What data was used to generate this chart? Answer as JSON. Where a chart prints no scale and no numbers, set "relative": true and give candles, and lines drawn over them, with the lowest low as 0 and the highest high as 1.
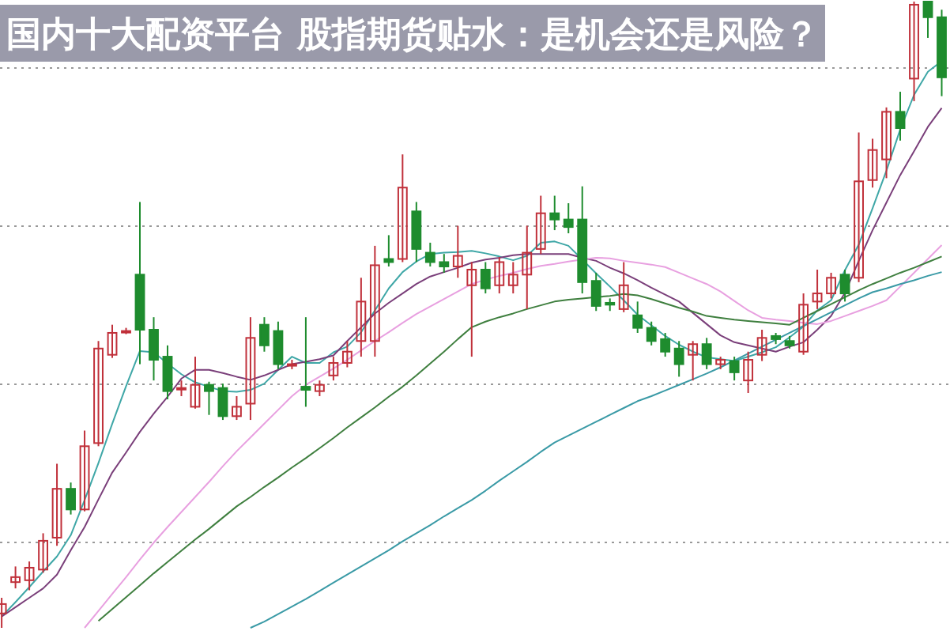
{
  "chart_data": {
    "type": "candlestick",
    "title": "国内十大配资平台 股指期货贴水：是机会还是风险？",
    "relative": true,
    "grid": "y",
    "categories": [
      null,
      null,
      null,
      null,
      null,
      null,
      null,
      null,
      null,
      null,
      null,
      null,
      null,
      null,
      null,
      null,
      null,
      null,
      null,
      null,
      null,
      null,
      null,
      null,
      null,
      null,
      null,
      null,
      null,
      null,
      null,
      null,
      null,
      null,
      null,
      null,
      null,
      null,
      null,
      null,
      null,
      null,
      null,
      null,
      null,
      null,
      null,
      null,
      null,
      null,
      null,
      null,
      null,
      null,
      null,
      null,
      null,
      null,
      null,
      null,
      null,
      null,
      null,
      null,
      null,
      null,
      null,
      null,
      null
    ],
    "ohlc": [
      [
        0.023,
        0.048,
        0,
        0.038
      ],
      [
        0.073,
        0.098,
        0.063,
        0.081
      ],
      [
        0.076,
        0.106,
        0.06,
        0.096
      ],
      [
        0.093,
        0.151,
        0.088,
        0.139
      ],
      [
        0.144,
        0.262,
        0.131,
        0.222
      ],
      [
        0.222,
        0.232,
        0.181,
        0.189
      ],
      [
        0.189,
        0.315,
        0.186,
        0.29
      ],
      [
        0.295,
        0.458,
        0.29,
        0.446
      ],
      [
        0.436,
        0.484,
        0.431,
        0.471
      ],
      [
        0.474,
        0.479,
        0.469,
        0.474
      ],
      [
        0.564,
        0.68,
        0.421,
        0.476
      ],
      [
        0.476,
        0.496,
        0.395,
        0.428
      ],
      [
        0.433,
        0.451,
        0.365,
        0.378
      ],
      [
        0.383,
        0.395,
        0.37,
        0.383
      ],
      [
        0.353,
        0.433,
        0.35,
        0.388
      ],
      [
        0.388,
        0.393,
        0.34,
        0.378
      ],
      [
        0.383,
        0.39,
        0.332,
        0.338
      ],
      [
        0.338,
        0.37,
        0.332,
        0.353
      ],
      [
        0.358,
        0.496,
        0.332,
        0.463
      ],
      [
        0.484,
        0.496,
        0.441,
        0.451
      ],
      [
        0.474,
        0.489,
        0.413,
        0.421
      ],
      [
        0.421,
        0.428,
        0.413,
        0.421
      ],
      [
        0.385,
        0.496,
        0.353,
        0.38
      ],
      [
        0.378,
        0.395,
        0.37,
        0.388
      ],
      [
        0.403,
        0.433,
        0.395,
        0.423
      ],
      [
        0.423,
        0.458,
        0.416,
        0.441
      ],
      [
        0.458,
        0.559,
        0.433,
        0.521
      ],
      [
        0.458,
        0.61,
        0.433,
        0.579
      ],
      [
        0.589,
        0.627,
        0.577,
        0.584
      ],
      [
        0.589,
        0.756,
        0.584,
        0.703
      ],
      [
        0.665,
        0.68,
        0.584,
        0.605
      ],
      [
        0.599,
        0.615,
        0.577,
        0.584
      ],
      [
        0.584,
        0.597,
        0.567,
        0.577
      ],
      [
        0.577,
        0.642,
        0.559,
        0.594
      ],
      [
        0.547,
        0.584,
        0.433,
        0.572
      ],
      [
        0.572,
        0.584,
        0.534,
        0.542
      ],
      [
        0.547,
        0.592,
        0.534,
        0.584
      ],
      [
        0.547,
        0.584,
        0.534,
        0.564
      ],
      [
        0.564,
        0.642,
        0.509,
        0.599
      ],
      [
        0.605,
        0.69,
        0.597,
        0.662
      ],
      [
        0.662,
        0.69,
        0.635,
        0.652
      ],
      [
        0.652,
        0.678,
        0.63,
        0.64
      ],
      [
        0.652,
        0.705,
        0.534,
        0.552
      ],
      [
        0.554,
        0.567,
        0.506,
        0.514
      ],
      [
        0.519,
        0.526,
        0.506,
        0.516
      ],
      [
        0.509,
        0.584,
        0.504,
        0.547
      ],
      [
        0.499,
        0.521,
        0.471,
        0.479
      ],
      [
        0.479,
        0.489,
        0.451,
        0.458
      ],
      [
        0.461,
        0.471,
        0.433,
        0.441
      ],
      [
        0.446,
        0.458,
        0.401,
        0.421
      ],
      [
        0.436,
        0.458,
        0.395,
        0.453
      ],
      [
        0.453,
        0.463,
        0.413,
        0.421
      ],
      [
        0.421,
        0.433,
        0.413,
        0.428
      ],
      [
        0.426,
        0.433,
        0.395,
        0.408
      ],
      [
        0.395,
        0.441,
        0.375,
        0.428
      ],
      [
        0.436,
        0.476,
        0.426,
        0.463
      ],
      [
        0.466,
        0.471,
        0.453,
        0.461
      ],
      [
        0.458,
        0.466,
        0.446,
        0.451
      ],
      [
        0.441,
        0.534,
        0.436,
        0.516
      ],
      [
        0.521,
        0.572,
        0.509,
        0.534
      ],
      [
        0.534,
        0.567,
        0.526,
        0.559
      ],
      [
        0.564,
        0.572,
        0.521,
        0.534
      ],
      [
        0.559,
        0.791,
        0.552,
        0.713
      ],
      [
        0.715,
        0.781,
        0.703,
        0.763
      ],
      [
        0.748,
        0.831,
        0.718,
        0.824
      ],
      [
        0.824,
        0.856,
        0.778,
        0.798
      ],
      [
        0.877,
        1,
        0.841,
        0.995
      ],
      [
        1,
        1,
        0.942,
        0.975
      ],
      [
        0.975,
        0.987,
        0.849,
        0.879
      ]
    ],
    "series": [
      {
        "type": "line",
        "color": "#3fa7a7",
        "values": [
          0.018,
          0.041,
          0.065,
          0.09,
          0.114,
          0.148,
          0.204,
          0.263,
          0.326,
          0.386,
          0.442,
          0.44,
          0.422,
          0.405,
          0.392,
          0.385,
          0.378,
          0.377,
          0.38,
          0.39,
          0.412,
          0.433,
          0.423,
          0.423,
          0.44,
          0.449,
          0.472,
          0.507,
          0.542,
          0.568,
          0.585,
          0.597,
          0.599,
          0.6,
          0.602,
          0.598,
          0.593,
          0.587,
          0.594,
          0.615,
          0.617,
          0.61,
          0.588,
          0.566,
          0.545,
          0.523,
          0.5,
          0.483,
          0.466,
          0.452,
          0.441,
          0.432,
          0.429,
          0.426,
          0.433,
          0.44,
          0.448,
          0.464,
          0.481,
          0.507,
          0.523,
          0.571,
          0.612,
          0.67,
          0.73,
          0.796,
          0.851,
          0.888,
          0.905
        ]
      },
      {
        "type": "line",
        "color": "#7a3f7a",
        "values": [
          0.018,
          0.033,
          0.048,
          0.063,
          0.085,
          0.124,
          0.161,
          0.205,
          0.248,
          0.28,
          0.313,
          0.342,
          0.369,
          0.398,
          0.412,
          0.412,
          0.407,
          0.401,
          0.396,
          0.403,
          0.412,
          0.421,
          0.425,
          0.429,
          0.435,
          0.458,
          0.48,
          0.502,
          0.519,
          0.534,
          0.549,
          0.561,
          0.568,
          0.575,
          0.583,
          0.588,
          0.591,
          0.595,
          0.597,
          0.597,
          0.597,
          0.597,
          0.591,
          0.586,
          0.575,
          0.566,
          0.555,
          0.543,
          0.532,
          0.521,
          0.503,
          0.485,
          0.467,
          0.456,
          0.451,
          0.446,
          0.441,
          0.449,
          0.456,
          0.476,
          0.498,
          0.535,
          0.586,
          0.635,
          0.679,
          0.723,
          0.761,
          0.8,
          0.83
        ]
      },
      {
        "type": "line",
        "color": "#e8a0e0",
        "values": [
          null,
          null,
          null,
          null,
          null,
          null,
          0,
          0.027,
          0.054,
          0.081,
          0.109,
          0.136,
          0.161,
          0.185,
          0.209,
          0.233,
          0.258,
          0.282,
          0.304,
          0.326,
          0.348,
          0.37,
          0.388,
          0.401,
          0.414,
          0.428,
          0.443,
          0.458,
          0.472,
          0.487,
          0.501,
          0.513,
          0.525,
          0.537,
          0.549,
          0.556,
          0.562,
          0.567,
          0.573,
          0.578,
          0.581,
          0.585,
          0.588,
          0.591,
          0.59,
          0.586,
          0.583,
          0.58,
          0.576,
          0.567,
          0.558,
          0.549,
          0.537,
          0.522,
          0.507,
          0.495,
          0.492,
          0.49,
          0.487,
          0.485,
          0.49,
          0.498,
          0.506,
          0.514,
          0.523,
          0.545,
          0.567,
          0.589,
          0.611
        ]
      },
      {
        "type": "line",
        "color": "#3f7f3f",
        "values": [
          null,
          null,
          null,
          null,
          null,
          null,
          null,
          0.011,
          0.03,
          0.049,
          0.068,
          0.087,
          0.105,
          0.123,
          0.141,
          0.158,
          0.176,
          0.194,
          0.209,
          0.225,
          0.24,
          0.256,
          0.271,
          0.287,
          0.303,
          0.32,
          0.336,
          0.352,
          0.369,
          0.385,
          0.403,
          0.422,
          0.441,
          0.461,
          0.48,
          0.489,
          0.496,
          0.502,
          0.509,
          0.515,
          0.521,
          0.524,
          0.526,
          0.528,
          0.53,
          0.533,
          0.531,
          0.525,
          0.518,
          0.511,
          0.505,
          0.498,
          0.495,
          0.492,
          0.49,
          0.488,
          0.486,
          0.484,
          0.495,
          0.506,
          0.517,
          0.528,
          0.539,
          0.549,
          0.558,
          0.567,
          0.575,
          0.584,
          0.593
        ]
      },
      {
        "type": "line",
        "color": "#3a9aa6",
        "values": [
          null,
          null,
          null,
          null,
          null,
          null,
          null,
          null,
          null,
          null,
          null,
          null,
          null,
          null,
          null,
          null,
          null,
          null,
          0,
          0.01,
          0.022,
          0.034,
          0.046,
          0.059,
          0.072,
          0.085,
          0.098,
          0.111,
          0.124,
          0.138,
          0.151,
          0.164,
          0.178,
          0.191,
          0.204,
          0.219,
          0.235,
          0.25,
          0.265,
          0.281,
          0.296,
          0.307,
          0.318,
          0.329,
          0.34,
          0.351,
          0.362,
          0.37,
          0.379,
          0.388,
          0.397,
          0.406,
          0.416,
          0.427,
          0.438,
          0.449,
          0.46,
          0.471,
          0.482,
          0.493,
          0.504,
          0.515,
          0.526,
          0.536,
          0.542,
          0.549,
          0.555,
          0.562,
          0.568
        ]
      }
    ]
  }
}
